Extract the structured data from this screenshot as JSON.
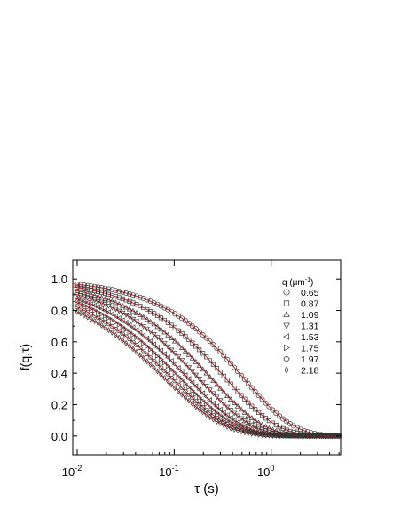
{
  "chart_data": {
    "type": "scatter",
    "xscale": "log",
    "xlim": [
      0.009,
      5.2
    ],
    "ylim": [
      -0.12,
      1.12
    ],
    "xlabel_symbol": "τ",
    "xlabel_unit": "(s)",
    "ylabel": "f(q,τ)",
    "xticks": [
      0.01,
      0.1,
      1
    ],
    "xtick_labels": [
      {
        "base": "10",
        "exp": "-2"
      },
      {
        "base": "10",
        "exp": "-1"
      },
      {
        "base": "10",
        "exp": "0"
      }
    ],
    "yticks": [
      0.0,
      0.2,
      0.4,
      0.6,
      0.8,
      1.0
    ],
    "ytick_labels": [
      "0.0",
      "0.2",
      "0.4",
      "0.6",
      "0.8",
      "1.0"
    ],
    "legend": {
      "title_prefix": "q (μm",
      "title_exp": "-1",
      "title_suffix": ")",
      "placement": "upper-right"
    },
    "marker_color": "#333333",
    "fit_color": "#cc0000",
    "series": [
      {
        "name": "0.65",
        "marker": "circle",
        "tau": 0.52,
        "beta": 0.85
      },
      {
        "name": "0.87",
        "marker": "square",
        "tau": 0.34,
        "beta": 0.82
      },
      {
        "name": "1.09",
        "marker": "triangle-up",
        "tau": 0.24,
        "beta": 0.8
      },
      {
        "name": "1.31",
        "marker": "triangle-down",
        "tau": 0.18,
        "beta": 0.78
      },
      {
        "name": "1.53",
        "marker": "triangle-left",
        "tau": 0.14,
        "beta": 0.76
      },
      {
        "name": "1.75",
        "marker": "triangle-right",
        "tau": 0.115,
        "beta": 0.74
      },
      {
        "name": "1.97",
        "marker": "hexagon",
        "tau": 0.095,
        "beta": 0.72
      },
      {
        "name": "2.18",
        "marker": "diamond",
        "tau": 0.08,
        "beta": 0.7
      }
    ]
  }
}
